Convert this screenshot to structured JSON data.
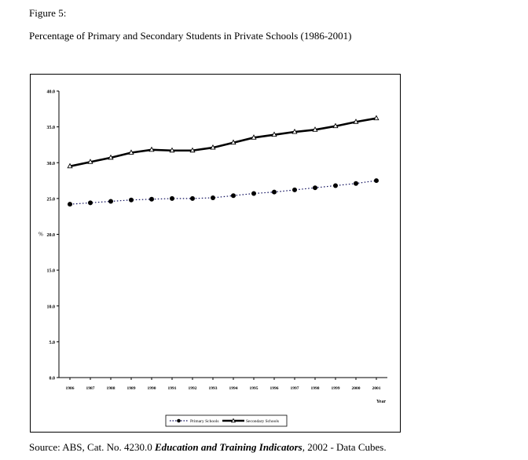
{
  "figure_label": "Figure 5:",
  "figure_title": "Percentage of Primary and Secondary Students in Private Schools (1986-2001)",
  "source": {
    "prefix": "Source: ABS, Cat. No. 4230.0",
    "publication": "Education and Training Indicators",
    "suffix": ", 2002 - Data Cubes."
  },
  "colors": {
    "primary": "#0a0a5a",
    "secondary": "#000000"
  },
  "chart_data": {
    "type": "line",
    "title": "",
    "xlabel": "Year",
    "ylabel": "%",
    "ylim": [
      0,
      40
    ],
    "yticks": [
      "0.0",
      "5.0",
      "10.0",
      "15.0",
      "20.0",
      "25.0",
      "30.0",
      "35.0",
      "40.0"
    ],
    "categories": [
      "1986",
      "1987",
      "1988",
      "1989",
      "1990",
      "1991",
      "1992",
      "1993",
      "1994",
      "1995",
      "1996",
      "1997",
      "1998",
      "1999",
      "2000",
      "2001"
    ],
    "grid": false,
    "legend_position": "bottom",
    "series": [
      {
        "name": "Primary Schools",
        "style": "dotted",
        "marker": "circle",
        "values": [
          24.2,
          24.4,
          24.6,
          24.8,
          24.9,
          25.0,
          25.0,
          25.1,
          25.4,
          25.7,
          25.9,
          26.2,
          26.5,
          26.8,
          27.1,
          27.5
        ]
      },
      {
        "name": "Secondary Schools",
        "style": "solid",
        "marker": "triangle",
        "values": [
          29.5,
          30.1,
          30.7,
          31.4,
          31.8,
          31.7,
          31.7,
          32.1,
          32.8,
          33.5,
          33.9,
          34.3,
          34.6,
          35.1,
          35.7,
          36.2
        ]
      }
    ]
  }
}
